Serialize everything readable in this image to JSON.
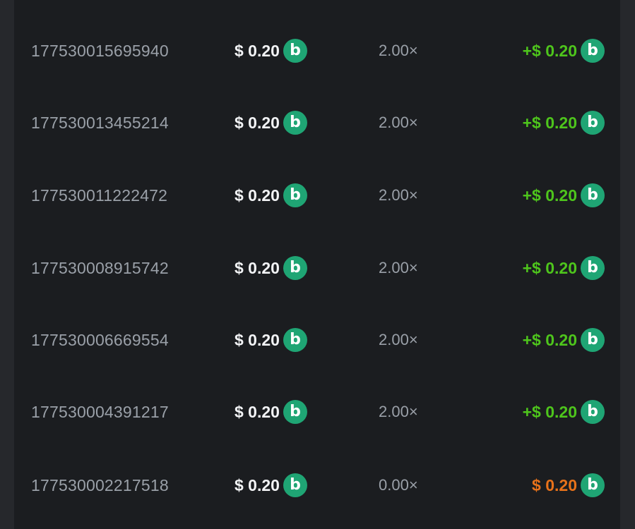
{
  "colors": {
    "win": "#4ec51c",
    "loss": "#e8721a",
    "coin": "#1fa574"
  },
  "coin_icon": "bc-coin-icon",
  "rows": [
    {
      "id": "177530015695940",
      "bet": "$ 0.20",
      "multiplier": "2.00×",
      "payout": "+$ 0.20",
      "result": "win"
    },
    {
      "id": "177530013455214",
      "bet": "$ 0.20",
      "multiplier": "2.00×",
      "payout": "+$ 0.20",
      "result": "win"
    },
    {
      "id": "177530011222472",
      "bet": "$ 0.20",
      "multiplier": "2.00×",
      "payout": "+$ 0.20",
      "result": "win"
    },
    {
      "id": "177530008915742",
      "bet": "$ 0.20",
      "multiplier": "2.00×",
      "payout": "+$ 0.20",
      "result": "win"
    },
    {
      "id": "177530006669554",
      "bet": "$ 0.20",
      "multiplier": "2.00×",
      "payout": "+$ 0.20",
      "result": "win"
    },
    {
      "id": "177530004391217",
      "bet": "$ 0.20",
      "multiplier": "2.00×",
      "payout": "+$ 0.20",
      "result": "win"
    },
    {
      "id": "177530002217518",
      "bet": "$ 0.20",
      "multiplier": "0.00×",
      "payout": "$ 0.20",
      "result": "loss"
    }
  ]
}
